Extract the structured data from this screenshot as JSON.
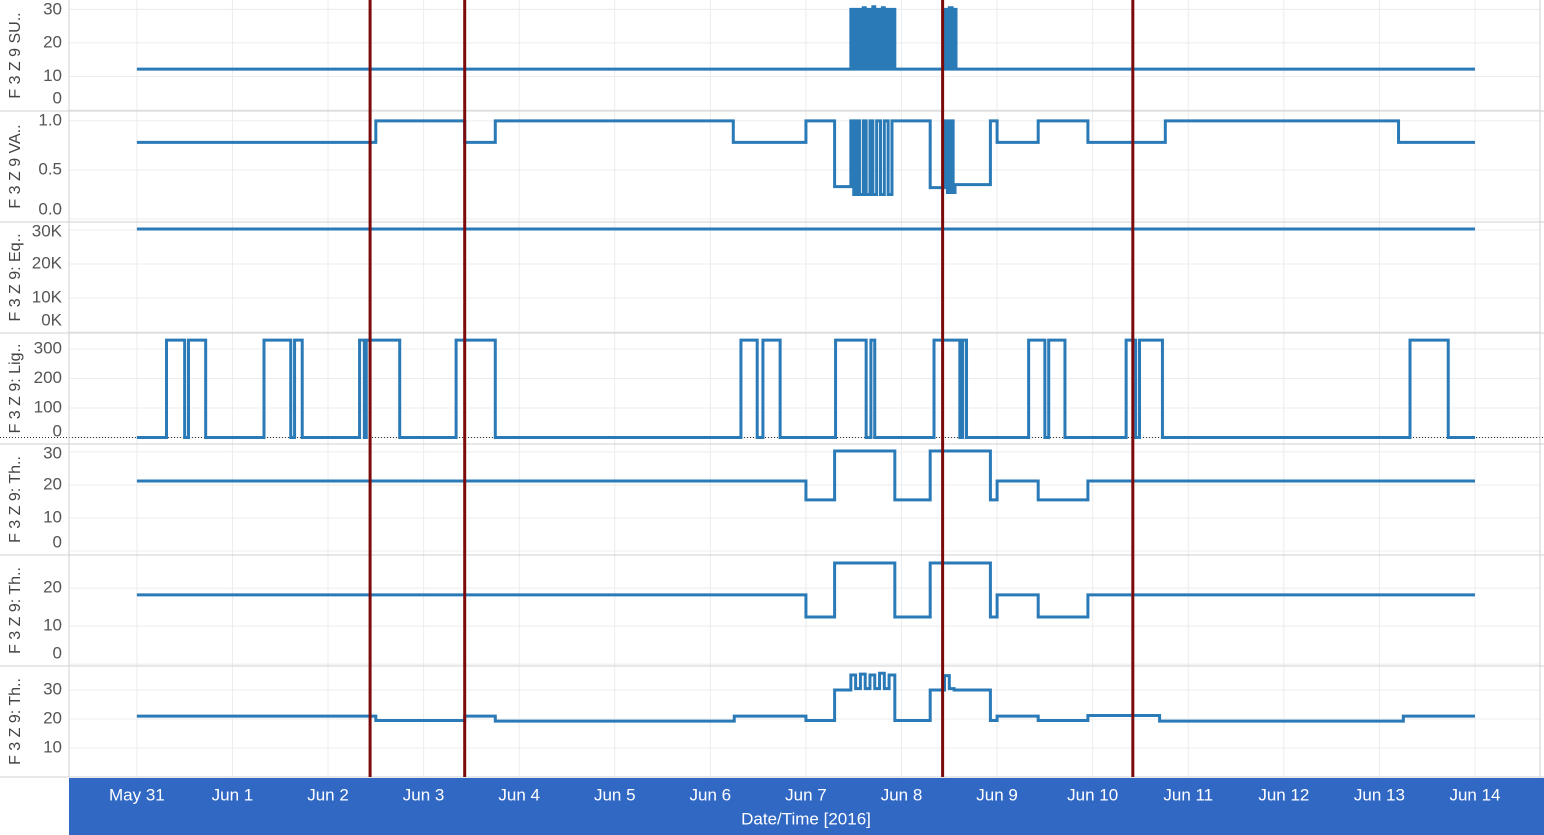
{
  "chart_data": {
    "type": "line",
    "x_label": "Date/Time [2016]",
    "xlim": [
      -0.71,
      14.68
    ],
    "xticks": [
      {
        "value": 0,
        "label": "May 31"
      },
      {
        "value": 1,
        "label": "Jun 1"
      },
      {
        "value": 2,
        "label": "Jun 2"
      },
      {
        "value": 3,
        "label": "Jun 3"
      },
      {
        "value": 4,
        "label": "Jun 4"
      },
      {
        "value": 5,
        "label": "Jun 5"
      },
      {
        "value": 6,
        "label": "Jun 6"
      },
      {
        "value": 7,
        "label": "Jun 7"
      },
      {
        "value": 8,
        "label": "Jun 8"
      },
      {
        "value": 9,
        "label": "Jun 9"
      },
      {
        "value": 10,
        "label": "Jun 10"
      },
      {
        "value": 11,
        "label": "Jun 11"
      },
      {
        "value": 12,
        "label": "Jun 12"
      },
      {
        "value": 13,
        "label": "Jun 13"
      },
      {
        "value": 14,
        "label": "Jun 14"
      }
    ],
    "grid": true,
    "color": "#2a7ab8",
    "reference_lines": {
      "values": [
        2.44,
        3.43,
        8.43,
        10.42
      ],
      "color": "#7b0a0a"
    },
    "panels": [
      {
        "ylabel": "F 3 Z 9 SU..",
        "ylim": [
          -0.3,
          32.8
        ],
        "yticks": [
          0,
          10,
          20,
          30
        ],
        "step": true,
        "x": [
          0,
          7.47,
          7.49,
          7.51,
          7.53,
          7.55,
          7.57,
          7.6,
          7.62,
          7.65,
          7.67,
          7.7,
          7.72,
          7.75,
          7.77,
          7.8,
          7.82,
          7.85,
          7.87,
          7.9,
          7.93,
          8.45,
          8.48,
          8.5,
          8.53,
          8.55,
          8.57,
          14
        ],
        "values": [
          12.2,
          30,
          12.2,
          30,
          12.2,
          30,
          12.2,
          30.5,
          12.2,
          30,
          12.2,
          30.8,
          12.2,
          30,
          12.2,
          30.5,
          12.2,
          30,
          12.2,
          30,
          12.2,
          30,
          12.2,
          30.5,
          12.2,
          30,
          12.2,
          12.2
        ]
      },
      {
        "ylabel": "F 3 Z 9 VA..",
        "ylim": [
          -0.03,
          1.1
        ],
        "yticks": [
          {
            "value": 0,
            "label": "0.0"
          },
          0.5,
          {
            "value": 1,
            "label": "1.0"
          }
        ],
        "step": true,
        "x": [
          0,
          2.5,
          3.43,
          3.75,
          6.24,
          7.0,
          7.3,
          7.47,
          7.5,
          7.53,
          7.56,
          7.6,
          7.63,
          7.67,
          7.7,
          7.74,
          7.78,
          7.82,
          7.86,
          7.9,
          7.93,
          8.3,
          8.45,
          8.48,
          8.51,
          8.54,
          8.56,
          8.93,
          9.0,
          9.43,
          9.95,
          10.76,
          13.2,
          14
        ],
        "values": [
          0.78,
          1.0,
          0.78,
          1.0,
          0.78,
          1.0,
          0.33,
          1.0,
          0.25,
          1.0,
          0.25,
          1.0,
          0.25,
          1.0,
          0.25,
          1.0,
          0.25,
          1.0,
          0.25,
          1.0,
          1.0,
          0.32,
          1.0,
          0.27,
          1.0,
          0.27,
          0.35,
          1.0,
          0.78,
          1.0,
          0.78,
          1.0,
          0.78,
          0.78
        ]
      },
      {
        "ylabel": "F 3 Z 9: Eq..",
        "ylim": [
          -300,
          32350
        ],
        "yticks": [
          {
            "value": 0,
            "label": "0K"
          },
          {
            "value": 10000,
            "label": "10K"
          },
          {
            "value": 20000,
            "label": "20K"
          },
          {
            "value": 30000,
            "label": "30K"
          }
        ],
        "step": true,
        "x": [
          0,
          14
        ],
        "values": [
          30300,
          30300
        ]
      },
      {
        "ylabel": "F 3 Z 9: Lig..",
        "ylim": [
          -22,
          354
        ],
        "yticks": [
          0,
          100,
          200,
          300
        ],
        "step": true,
        "zero_line": true,
        "x": [
          0,
          0.31,
          0.5,
          0.54,
          0.72,
          1.33,
          1.61,
          1.65,
          1.73,
          2.33,
          2.38,
          2.4,
          2.75,
          3.34,
          3.75,
          6.32,
          6.49,
          6.55,
          6.73,
          7.31,
          7.63,
          7.68,
          7.72,
          8.34,
          8.61,
          8.64,
          8.68,
          9.33,
          9.5,
          9.54,
          9.71,
          10.35,
          10.45,
          10.49,
          10.73,
          13.32,
          13.72,
          14
        ],
        "values": [
          0,
          330,
          0,
          330,
          0,
          330,
          0,
          330,
          0,
          330,
          0,
          330,
          0,
          330,
          0,
          330,
          0,
          330,
          0,
          330,
          0,
          330,
          0,
          330,
          0,
          330,
          0,
          330,
          0,
          330,
          0,
          330,
          0,
          330,
          0,
          330,
          0,
          0
        ]
      },
      {
        "ylabel": "F 3 Z 9: Th..",
        "ylim": [
          -1.2,
          32.4
        ],
        "yticks": [
          0,
          10,
          20,
          30
        ],
        "step": true,
        "x": [
          0,
          7.0,
          7.3,
          7.93,
          8.3,
          8.93,
          9.0,
          9.43,
          9.95,
          14
        ],
        "values": [
          21.2,
          15.5,
          30.3,
          15.5,
          30.3,
          15.5,
          21.2,
          15.5,
          21.2,
          21.2
        ]
      },
      {
        "ylabel": "F 3 Z 9: Th..",
        "ylim": [
          -0.5,
          28.7
        ],
        "yticks": [
          0,
          10,
          20
        ],
        "step": true,
        "x": [
          0,
          7.0,
          7.3,
          7.93,
          8.3,
          8.93,
          9.0,
          9.43,
          9.95,
          14
        ],
        "values": [
          18.2,
          12.4,
          26.6,
          12.4,
          26.6,
          12.4,
          18.2,
          12.4,
          18.2,
          18.2
        ]
      },
      {
        "ylabel": "F 3 Z 9: Th..",
        "ylim": [
          0,
          38.3
        ],
        "yticks": [
          10,
          20,
          30
        ],
        "step": true,
        "x": [
          0,
          2.5,
          3.43,
          3.75,
          6.25,
          7.0,
          7.3,
          7.47,
          7.52,
          7.57,
          7.62,
          7.67,
          7.72,
          7.77,
          7.82,
          7.87,
          7.93,
          8.3,
          8.45,
          8.5,
          8.55,
          8.93,
          9.0,
          9.43,
          9.95,
          10.7,
          13.25,
          14
        ],
        "values": [
          21.0,
          19.5,
          21.0,
          19.3,
          21.0,
          19.5,
          30.0,
          35.2,
          30.5,
          35.5,
          30.5,
          35.2,
          30.5,
          35.8,
          30.5,
          35.2,
          19.5,
          30.0,
          35.0,
          30.5,
          30.0,
          19.5,
          21.0,
          19.5,
          21.2,
          19.3,
          21.0,
          21.0
        ]
      }
    ]
  }
}
